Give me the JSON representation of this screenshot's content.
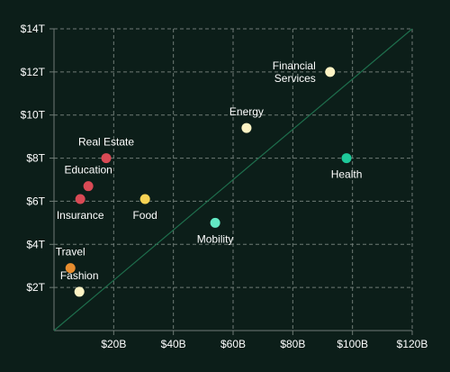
{
  "chart_data": {
    "type": "scatter",
    "title": "",
    "xlabel": "",
    "ylabel": "",
    "xlim": [
      0,
      120
    ],
    "ylim": [
      0,
      14
    ],
    "x_ticks": [
      20,
      40,
      60,
      80,
      100,
      120
    ],
    "x_tick_labels": [
      "$20B",
      "$40B",
      "$60B",
      "$80B",
      "$100B",
      "$120B"
    ],
    "y_ticks": [
      2,
      4,
      6,
      8,
      10,
      12,
      14
    ],
    "y_tick_labels": [
      "$2T",
      "$4T",
      "$6T",
      "$8T",
      "$10T",
      "$12T",
      "$14T"
    ],
    "grid": true,
    "diagonal_reference_line": true,
    "colors": {
      "background": "#0c1e19",
      "grid": "#6f7b76",
      "diagonal": "#1e6e4c",
      "cream": "#fdf3c4",
      "red": "#d94a55",
      "yellow": "#f8d354",
      "mint": "#62e9c4",
      "green": "#1ec99a",
      "orange": "#e88d2f"
    },
    "points": [
      {
        "name": "Financial\nServices",
        "x": 92.5,
        "y": 12.0,
        "color": "#fdf3c4",
        "label_pos": "left"
      },
      {
        "name": "Energy",
        "x": 64.5,
        "y": 9.4,
        "color": "#fdf3c4",
        "label_pos": "above"
      },
      {
        "name": "Health",
        "x": 98.0,
        "y": 8.0,
        "color": "#1ec99a",
        "label_pos": "below"
      },
      {
        "name": "Real Estate",
        "x": 17.5,
        "y": 8.0,
        "color": "#d94a55",
        "label_pos": "above"
      },
      {
        "name": "Education",
        "x": 11.5,
        "y": 6.7,
        "color": "#d94a55",
        "label_pos": "above"
      },
      {
        "name": "Insurance",
        "x": 8.8,
        "y": 6.1,
        "color": "#d94a55",
        "label_pos": "below"
      },
      {
        "name": "Food",
        "x": 30.5,
        "y": 6.1,
        "color": "#f8d354",
        "label_pos": "below"
      },
      {
        "name": "Mobility",
        "x": 54.0,
        "y": 5.0,
        "color": "#62e9c4",
        "label_pos": "below"
      },
      {
        "name": "Travel",
        "x": 5.5,
        "y": 2.9,
        "color": "#e88d2f",
        "label_pos": "above"
      },
      {
        "name": "Fashion",
        "x": 8.5,
        "y": 1.8,
        "color": "#fdf3c4",
        "label_pos": "above"
      }
    ]
  }
}
